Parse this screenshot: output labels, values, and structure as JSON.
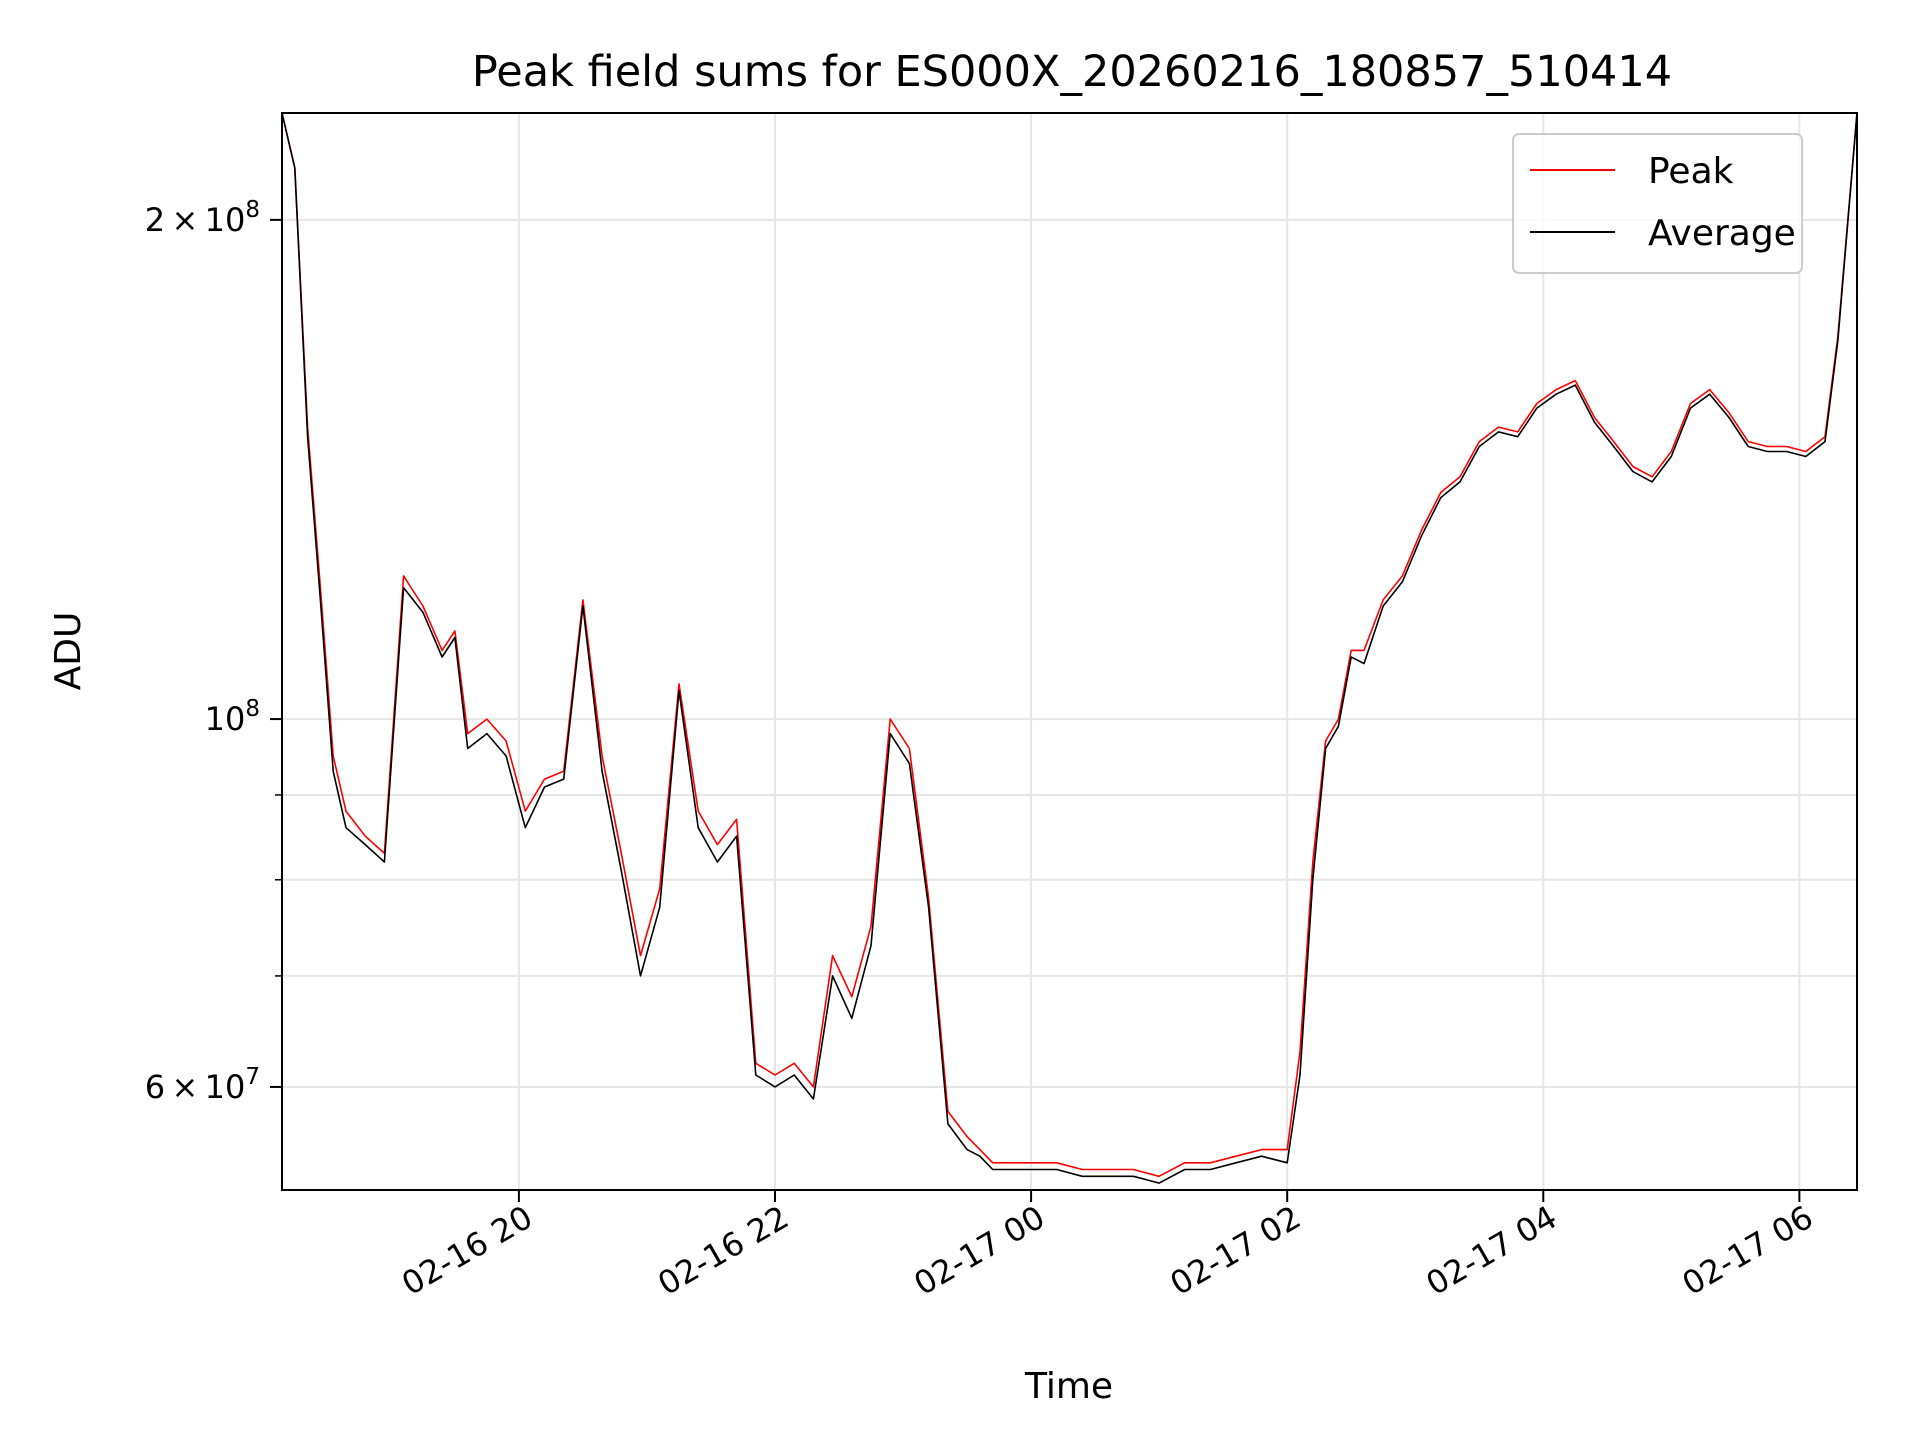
{
  "chart_data": {
    "type": "line",
    "title": "Peak field sums for ES000X_20260216_180857_510414",
    "xlabel": "Time",
    "ylabel": "ADU",
    "y_scale": "log",
    "ylim": [
      52000000,
      232000000
    ],
    "xlim_hours": [
      18.15,
      30.45
    ],
    "x_ticks": [
      {
        "hour": 20,
        "label": "02-16 20"
      },
      {
        "hour": 22,
        "label": "02-16 22"
      },
      {
        "hour": 24,
        "label": "02-17 00"
      },
      {
        "hour": 26,
        "label": "02-17 02"
      },
      {
        "hour": 28,
        "label": "02-17 04"
      },
      {
        "hour": 30,
        "label": "02-17 06"
      }
    ],
    "y_major_ticks": [
      {
        "value": 60000000,
        "base": "6",
        "exp": "7"
      },
      {
        "value": 100000000,
        "base": "",
        "exp": "8"
      },
      {
        "value": 200000000,
        "base": "2",
        "exp": "8"
      }
    ],
    "y_minor_ticks": [
      70000000,
      80000000,
      90000000
    ],
    "legend": {
      "position": "top-right",
      "entries": [
        {
          "label": "Peak",
          "color": "#ff0000"
        },
        {
          "label": "Average",
          "color": "#000000"
        }
      ]
    },
    "grid": true,
    "x_hours": [
      18.15,
      18.25,
      18.35,
      18.45,
      18.55,
      18.65,
      18.8,
      18.95,
      19.1,
      19.25,
      19.4,
      19.5,
      19.6,
      19.75,
      19.9,
      20.05,
      20.2,
      20.35,
      20.5,
      20.65,
      20.8,
      20.95,
      21.1,
      21.25,
      21.4,
      21.55,
      21.7,
      21.85,
      22.0,
      22.15,
      22.3,
      22.45,
      22.6,
      22.75,
      22.9,
      23.05,
      23.2,
      23.35,
      23.5,
      23.6,
      23.7,
      23.85,
      24.0,
      24.2,
      24.4,
      24.6,
      24.8,
      25.0,
      25.2,
      25.4,
      25.6,
      25.8,
      26.0,
      26.1,
      26.2,
      26.3,
      26.4,
      26.5,
      26.6,
      26.75,
      26.9,
      27.05,
      27.2,
      27.35,
      27.5,
      27.65,
      27.8,
      27.95,
      28.1,
      28.25,
      28.4,
      28.55,
      28.7,
      28.85,
      29.0,
      29.15,
      29.3,
      29.45,
      29.6,
      29.75,
      29.9,
      30.05,
      30.2,
      30.3,
      30.45
    ],
    "series": [
      {
        "name": "Peak",
        "color": "#ff0000",
        "values": [
          232,
          215,
          150,
          120,
          95,
          88,
          85,
          83,
          122,
          117,
          110,
          113,
          98,
          100,
          97,
          88,
          92,
          93,
          118,
          95,
          83,
          72,
          79,
          105,
          88,
          84,
          87,
          62,
          61,
          62,
          60,
          72,
          68,
          75,
          100,
          96,
          78,
          58,
          56,
          55,
          54,
          54,
          54,
          54,
          53.5,
          53.5,
          53.5,
          53,
          54,
          54,
          54.5,
          55,
          55,
          63,
          82,
          97,
          100,
          110,
          110,
          118,
          122,
          130,
          137,
          140,
          147,
          150,
          149,
          155,
          158,
          160,
          152,
          147,
          142,
          140,
          145,
          155,
          158,
          153,
          147,
          146,
          146,
          145,
          148,
          170,
          232
        ]
      },
      {
        "name": "Average",
        "color": "#000000",
        "values": [
          232,
          215,
          148,
          118,
          93,
          86,
          84,
          82,
          120,
          116,
          109,
          112,
          96,
          98,
          95,
          86,
          91,
          92,
          117,
          93,
          81,
          70,
          77,
          104,
          86,
          82,
          85,
          61,
          60,
          61,
          59,
          70,
          66,
          73,
          98,
          94,
          77,
          57,
          55,
          54.5,
          53.5,
          53.5,
          53.5,
          53.5,
          53,
          53,
          53,
          52.5,
          53.5,
          53.5,
          54,
          54.5,
          54,
          61,
          80,
          96,
          99,
          109,
          108,
          117,
          121,
          129,
          136,
          139,
          146,
          149,
          148,
          154,
          157,
          159,
          151,
          146,
          141,
          139,
          144,
          154,
          157,
          152,
          146,
          145,
          145,
          144,
          147,
          169,
          232
        ]
      }
    ]
  }
}
